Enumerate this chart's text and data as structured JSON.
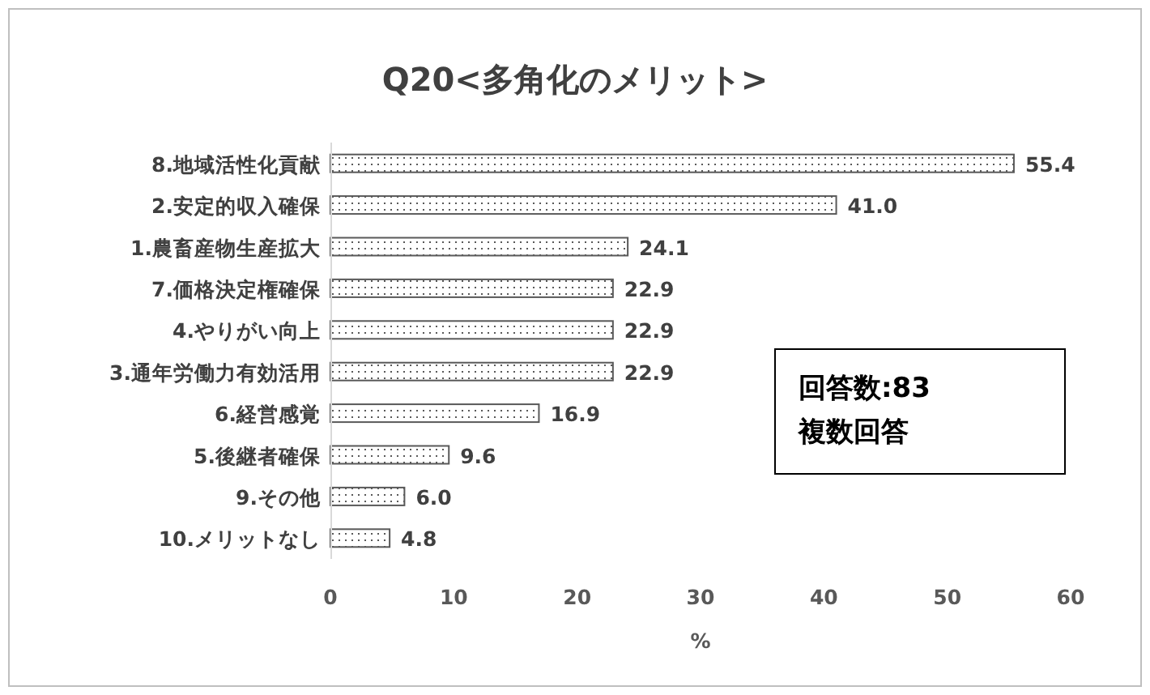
{
  "chart_data": {
    "type": "bar",
    "orientation": "horizontal",
    "title": "Q20<多角化のメリット>",
    "xlabel": "%",
    "categories": [
      "8.地域活性化貢献",
      "2.安定的収入確保",
      "1.農畜産物生産拡大",
      "7.価格決定権確保",
      "4.やりがい向上",
      "3.通年労働力有効活用",
      "6.経営感覚",
      "5.後継者確保",
      "9.その他",
      "10.メリットなし"
    ],
    "values": [
      55.4,
      41.0,
      24.1,
      22.9,
      22.9,
      22.9,
      16.9,
      9.6,
      6.0,
      4.8
    ],
    "value_labels": [
      "55.4",
      "41.0",
      "24.1",
      "22.9",
      "22.9",
      "22.9",
      "16.9",
      "9.6",
      "6.0",
      "4.8"
    ],
    "color": "#595959",
    "xlim": [
      0,
      60
    ],
    "xticks": [
      0,
      10,
      20,
      30,
      40,
      50,
      60
    ],
    "annotations": [
      "回答数:83",
      "複数回答"
    ]
  }
}
